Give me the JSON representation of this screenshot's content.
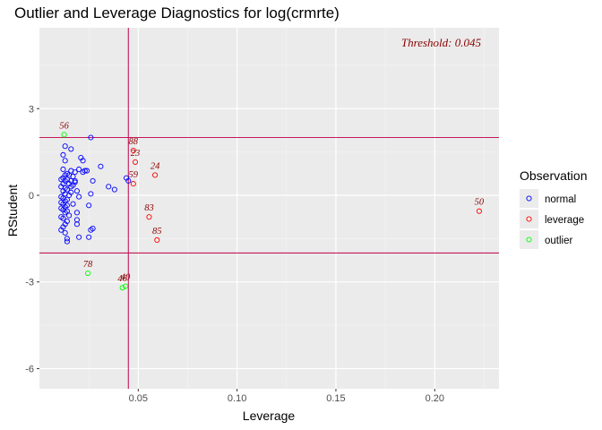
{
  "chart_data": {
    "type": "scatter",
    "title": "Outlier and Leverage Diagnostics for log(crmrte)",
    "xlabel": "Leverage",
    "ylabel": "RStudent",
    "xlim": [
      0.0,
      0.2325
    ],
    "ylim": [
      -6.7,
      5.8
    ],
    "x_ticks": [
      0.05,
      0.1,
      0.15,
      0.2
    ],
    "x_tick_labels": [
      "0.05",
      "0.10",
      "0.15",
      "0.20"
    ],
    "y_ticks": [
      3,
      0,
      -3,
      -6
    ],
    "y_tick_labels": [
      "3",
      "0",
      "-3",
      "-6"
    ],
    "grid": true,
    "leverage_threshold": 0.045,
    "rstudent_thresholds": [
      2,
      -2
    ],
    "annotation": "Threshold: 0.045",
    "legend": {
      "title": "Observation",
      "position": "right",
      "entries": [
        {
          "label": "normal",
          "color": "#0000ff"
        },
        {
          "label": "leverage",
          "color": "#ff0000"
        },
        {
          "label": "outlier",
          "color": "#00ff00"
        }
      ]
    },
    "colors": {
      "normal": "#0000ff",
      "leverage": "#ff0000",
      "outlier": "#00ff00",
      "threshold_line": "#c2185b",
      "label": "#8b0000"
    },
    "series": [
      {
        "name": "normal",
        "points": [
          [
            0.026,
            2.0
          ],
          [
            0.013,
            1.7
          ],
          [
            0.016,
            1.6
          ],
          [
            0.021,
            1.3
          ],
          [
            0.022,
            1.2
          ],
          [
            0.012,
            1.4
          ],
          [
            0.013,
            1.2
          ],
          [
            0.031,
            1.0
          ],
          [
            0.02,
            0.9
          ],
          [
            0.023,
            0.85
          ],
          [
            0.012,
            0.9
          ],
          [
            0.016,
            0.85
          ],
          [
            0.018,
            0.8
          ],
          [
            0.014,
            0.75
          ],
          [
            0.013,
            0.7
          ],
          [
            0.015,
            0.7
          ],
          [
            0.017,
            0.65
          ],
          [
            0.012,
            0.6
          ],
          [
            0.014,
            0.55
          ],
          [
            0.011,
            0.55
          ],
          [
            0.013,
            0.5
          ],
          [
            0.016,
            0.5
          ],
          [
            0.018,
            0.45
          ],
          [
            0.012,
            0.4
          ],
          [
            0.015,
            0.4
          ],
          [
            0.017,
            0.35
          ],
          [
            0.011,
            0.3
          ],
          [
            0.013,
            0.25
          ],
          [
            0.014,
            0.2
          ],
          [
            0.012,
            0.15
          ],
          [
            0.016,
            0.1
          ],
          [
            0.013,
            0.05
          ],
          [
            0.015,
            0.0
          ],
          [
            0.011,
            -0.05
          ],
          [
            0.012,
            -0.1
          ],
          [
            0.014,
            -0.15
          ],
          [
            0.013,
            -0.2
          ],
          [
            0.011,
            -0.25
          ],
          [
            0.012,
            -0.3
          ],
          [
            0.014,
            -0.35
          ],
          [
            0.013,
            -0.4
          ],
          [
            0.011,
            -0.45
          ],
          [
            0.012,
            -0.5
          ],
          [
            0.014,
            -0.55
          ],
          [
            0.013,
            -0.6
          ],
          [
            0.015,
            -0.7
          ],
          [
            0.011,
            -0.75
          ],
          [
            0.012,
            -0.8
          ],
          [
            0.014,
            -0.9
          ],
          [
            0.013,
            -1.0
          ],
          [
            0.012,
            -1.1
          ],
          [
            0.011,
            -1.2
          ],
          [
            0.013,
            -1.3
          ],
          [
            0.014,
            -1.5
          ],
          [
            0.014,
            -1.6
          ],
          [
            0.019,
            -0.6
          ],
          [
            0.019,
            -0.85
          ],
          [
            0.019,
            -1.0
          ],
          [
            0.02,
            -1.45
          ],
          [
            0.025,
            -1.45
          ],
          [
            0.026,
            -1.2
          ],
          [
            0.027,
            -1.15
          ],
          [
            0.025,
            -0.35
          ],
          [
            0.02,
            -0.05
          ],
          [
            0.026,
            0.05
          ],
          [
            0.027,
            0.5
          ],
          [
            0.035,
            0.3
          ],
          [
            0.038,
            0.2
          ],
          [
            0.044,
            0.6
          ],
          [
            0.045,
            0.5
          ],
          [
            0.024,
            0.85
          ],
          [
            0.022,
            0.8
          ],
          [
            0.018,
            0.5
          ],
          [
            0.016,
            0.3
          ],
          [
            0.019,
            0.15
          ],
          [
            0.017,
            -0.3
          ]
        ]
      },
      {
        "name": "leverage",
        "points": [
          [
            0.0475,
            1.55
          ],
          [
            0.0485,
            1.15
          ],
          [
            0.0585,
            0.7
          ],
          [
            0.0475,
            0.4
          ],
          [
            0.0555,
            -0.75
          ],
          [
            0.0595,
            -1.55
          ],
          [
            0.2225,
            -0.55
          ]
        ],
        "labels": [
          "88",
          "23",
          "24",
          "59",
          "83",
          "85",
          "50"
        ]
      },
      {
        "name": "outlier",
        "points": [
          [
            0.0125,
            2.1
          ],
          [
            0.0245,
            -2.7
          ],
          [
            0.042,
            -3.2
          ],
          [
            0.0435,
            -3.15
          ]
        ],
        "labels": [
          "56",
          "78",
          "46",
          "40"
        ]
      }
    ]
  }
}
